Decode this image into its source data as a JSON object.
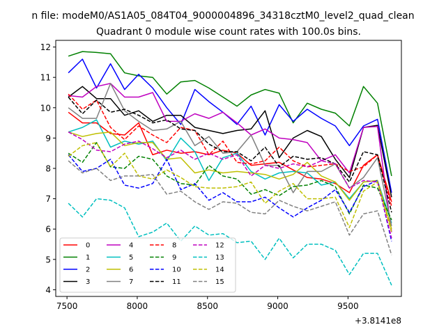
{
  "chart_data": {
    "type": "line",
    "suptitle": "n file: modeM0/AS1A05_084T04_9000004896_34318cztM0_level2_quad_clean",
    "title": "Quadrant 0 module wise count rates with 100.0s bins.",
    "xlabel": "",
    "ylabel": "",
    "x_offset_label": "+3.8141e8",
    "x_offset": 381410000,
    "xlim": [
      7420,
      9880
    ],
    "ylim": [
      3.78,
      12.22
    ],
    "xticks": [
      7500,
      8000,
      8500,
      9000,
      9500
    ],
    "yticks": [
      4,
      5,
      6,
      7,
      8,
      9,
      10,
      11,
      12
    ],
    "grid": false,
    "legend": {
      "placement": "lower left",
      "columns": 4
    },
    "x": [
      7510,
      7610,
      7710,
      7810,
      7910,
      8010,
      8110,
      8210,
      8310,
      8410,
      8510,
      8610,
      8710,
      8810,
      8910,
      9010,
      9110,
      9210,
      9310,
      9410,
      9510,
      9610,
      9710,
      9810
    ],
    "series": [
      {
        "name": "0",
        "color": "#ff0000",
        "dash": "solid",
        "values": [
          9.85,
          9.5,
          9.5,
          9.15,
          9.1,
          9.5,
          8.45,
          8.6,
          8.5,
          8.55,
          8.45,
          8.6,
          8.5,
          8.1,
          8.15,
          8.2,
          7.95,
          7.7,
          7.65,
          7.5,
          7.2,
          8.1,
          8.45,
          6.9
        ]
      },
      {
        "name": "1",
        "color": "#008000",
        "dash": "solid",
        "values": [
          11.7,
          11.85,
          11.82,
          11.78,
          11.15,
          11.05,
          11.0,
          10.45,
          10.85,
          10.9,
          10.65,
          10.35,
          10.05,
          10.42,
          10.6,
          10.48,
          9.5,
          10.15,
          9.95,
          9.82,
          9.4,
          10.7,
          10.15,
          7.75
        ]
      },
      {
        "name": "2",
        "color": "#0000ff",
        "dash": "solid",
        "values": [
          11.15,
          11.6,
          10.65,
          11.45,
          10.6,
          11.1,
          10.65,
          10.0,
          9.45,
          10.6,
          10.2,
          9.85,
          9.45,
          10.05,
          9.1,
          10.1,
          9.55,
          9.95,
          9.65,
          9.4,
          8.75,
          9.4,
          9.62,
          7.2
        ]
      },
      {
        "name": "3",
        "color": "#000000",
        "dash": "solid",
        "values": [
          10.35,
          10.7,
          10.3,
          10.3,
          9.75,
          9.9,
          9.55,
          9.75,
          9.75,
          9.35,
          9.25,
          9.15,
          9.25,
          9.3,
          9.9,
          8.35,
          9.0,
          9.25,
          9.05,
          8.3,
          7.7,
          9.35,
          9.42,
          7.05
        ]
      },
      {
        "name": "4",
        "color": "#bf00bf",
        "dash": "solid",
        "values": [
          10.4,
          10.35,
          10.7,
          10.8,
          10.35,
          10.35,
          10.5,
          9.55,
          9.55,
          9.8,
          9.65,
          9.85,
          9.5,
          9.1,
          9.3,
          9.0,
          8.95,
          8.85,
          8.25,
          8.45,
          7.85,
          9.35,
          9.38,
          5.9
        ]
      },
      {
        "name": "5",
        "color": "#00bfbf",
        "dash": "solid",
        "values": [
          9.2,
          9.35,
          9.6,
          8.7,
          8.9,
          8.8,
          8.9,
          8.25,
          9.0,
          8.55,
          7.6,
          8.35,
          8.5,
          7.9,
          7.65,
          7.85,
          7.9,
          7.85,
          7.45,
          7.55,
          7.0,
          7.55,
          7.6,
          6.2
        ]
      },
      {
        "name": "6",
        "color": "#bfbf00",
        "dash": "solid",
        "values": [
          9.2,
          9.05,
          9.15,
          9.2,
          8.75,
          8.85,
          8.85,
          8.3,
          8.35,
          7.85,
          7.95,
          7.85,
          7.9,
          7.85,
          7.8,
          7.65,
          7.8,
          8.2,
          7.75,
          7.55,
          6.95,
          7.55,
          7.6,
          6.0
        ]
      },
      {
        "name": "7",
        "color": "#808080",
        "dash": "solid",
        "values": [
          10.0,
          9.65,
          9.65,
          10.8,
          9.9,
          9.55,
          9.25,
          9.3,
          9.55,
          8.75,
          9.05,
          8.5,
          8.55,
          9.1,
          8.1,
          8.1,
          7.2,
          7.9,
          7.9,
          8.15,
          7.35,
          7.7,
          8.35,
          6.1
        ]
      },
      {
        "name": "8",
        "color": "#ff0000",
        "dash": "dashed",
        "values": [
          10.45,
          9.95,
          10.25,
          9.35,
          8.95,
          9.4,
          9.1,
          8.85,
          9.35,
          9.25,
          8.45,
          8.9,
          8.2,
          8.15,
          8.25,
          8.7,
          8.25,
          8.05,
          8.1,
          8.15,
          7.9,
          8.05,
          8.45,
          6.75
        ]
      },
      {
        "name": "9",
        "color": "#008000",
        "dash": "dashed",
        "values": [
          8.5,
          8.2,
          8.85,
          8.05,
          8.0,
          8.4,
          8.3,
          7.75,
          7.5,
          7.45,
          8.1,
          7.75,
          7.65,
          7.15,
          7.3,
          7.1,
          7.4,
          7.45,
          7.6,
          7.4,
          6.5,
          7.45,
          7.35,
          6.3
        ]
      },
      {
        "name": "10",
        "color": "#0000ff",
        "dash": "dashed",
        "values": [
          8.45,
          7.9,
          8.0,
          8.3,
          7.45,
          7.35,
          7.5,
          8.3,
          7.3,
          7.5,
          6.95,
          7.2,
          6.9,
          6.9,
          7.05,
          6.7,
          6.4,
          6.7,
          6.95,
          7.3,
          6.55,
          7.4,
          7.6,
          5.6
        ]
      },
      {
        "name": "11",
        "color": "#000000",
        "dash": "dashed",
        "values": [
          10.35,
          9.8,
          10.25,
          9.85,
          9.95,
          9.75,
          9.5,
          9.6,
          9.3,
          9.25,
          8.8,
          8.55,
          8.55,
          8.25,
          8.7,
          8.05,
          8.4,
          8.3,
          8.35,
          8.15,
          7.55,
          8.55,
          8.45,
          6.55
        ]
      },
      {
        "name": "12",
        "color": "#bf00bf",
        "dash": "dashed",
        "values": [
          9.2,
          8.95,
          8.6,
          8.55,
          8.8,
          8.9,
          8.65,
          8.35,
          8.6,
          8.3,
          8.5,
          8.3,
          8.45,
          7.75,
          8.1,
          8.0,
          8.15,
          8.05,
          8.25,
          8.15,
          7.35,
          7.6,
          7.55,
          5.7
        ]
      },
      {
        "name": "13",
        "color": "#00bfbf",
        "dash": "dashed",
        "values": [
          6.85,
          6.4,
          7.0,
          6.95,
          6.7,
          5.75,
          5.9,
          6.2,
          5.6,
          6.1,
          5.8,
          5.85,
          5.55,
          5.6,
          5.0,
          5.7,
          5.05,
          5.5,
          5.5,
          5.3,
          4.5,
          5.2,
          5.2,
          4.15
        ]
      },
      {
        "name": "14",
        "color": "#bfbf00",
        "dash": "dashed",
        "values": [
          8.4,
          8.75,
          8.85,
          8.05,
          8.5,
          7.75,
          7.65,
          7.95,
          7.7,
          7.4,
          7.35,
          7.35,
          7.4,
          7.55,
          6.85,
          7.25,
          7.5,
          7.0,
          7.0,
          7.05,
          6.05,
          7.25,
          7.55,
          5.9
        ]
      },
      {
        "name": "15",
        "color": "#808080",
        "dash": "dashed",
        "values": [
          8.25,
          7.85,
          8.0,
          7.6,
          7.75,
          7.75,
          7.8,
          7.15,
          7.25,
          6.9,
          6.65,
          6.9,
          6.85,
          6.55,
          6.5,
          6.95,
          6.75,
          6.6,
          6.75,
          6.9,
          5.8,
          6.5,
          6.6,
          5.15
        ]
      }
    ]
  }
}
